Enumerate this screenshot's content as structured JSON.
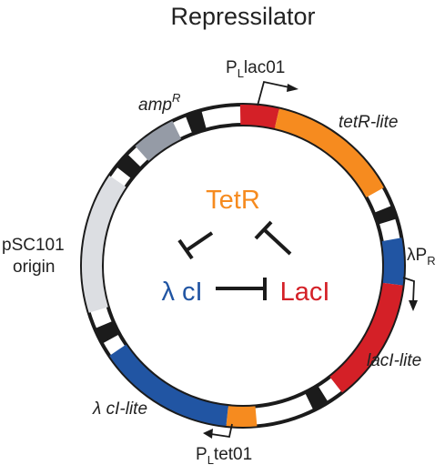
{
  "title": "Repressilator",
  "colors": {
    "tetR": "#f68b1f",
    "lacI": "#d42027",
    "lambdaCI": "#2155a3",
    "ampR": "#959ba6",
    "pSC101": "#dcdee2",
    "terminator": "#1b1b1b",
    "backbone": "#1b1b1b"
  },
  "genes": {
    "tetR": "tetR-lite",
    "lacI": "lacI-lite",
    "lambda_cI": "λ cI-lite",
    "ampR": {
      "base": "amp",
      "sup": "R"
    },
    "pSC101": {
      "line1": "pSC101",
      "line2": "origin"
    }
  },
  "promoters": {
    "PLlac01": {
      "main": "P",
      "sub": "L",
      "rest": "lac01"
    },
    "PLtet01": {
      "main": "P",
      "sub": "L",
      "rest": "tet01"
    },
    "lambdaPR": {
      "main": "λP",
      "sub": "R"
    }
  },
  "proteins": {
    "tetR": "TetR",
    "lacI": "LacI",
    "lambda_cI": "λ cI"
  }
}
